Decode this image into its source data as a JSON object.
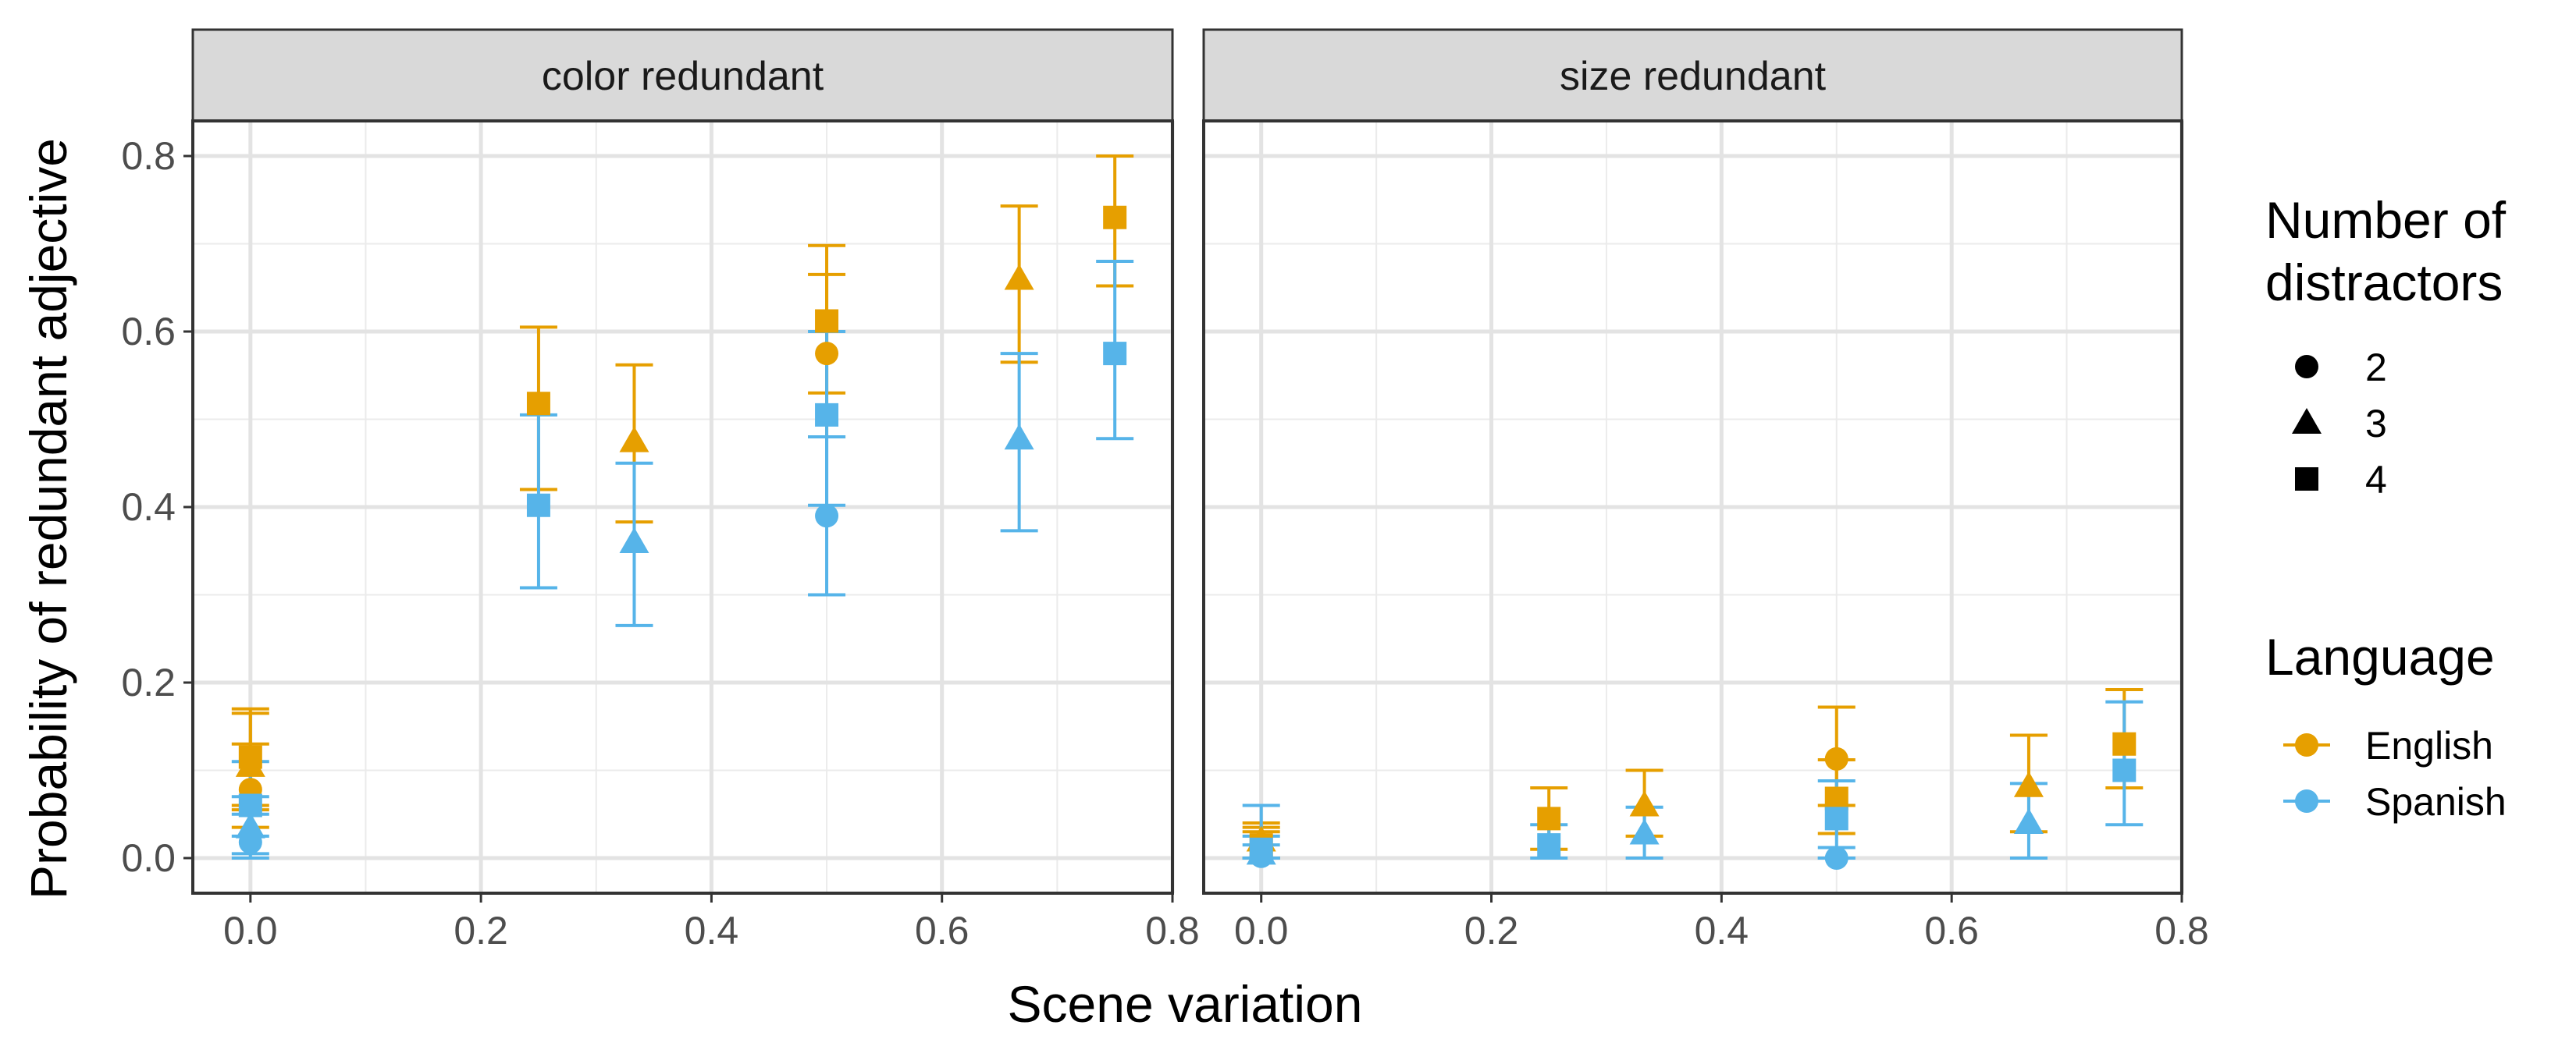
{
  "chart_data": {
    "type": "scatter",
    "xlabel": "Scene variation",
    "ylabel": "Probability of redundant adjective",
    "xlim": [
      -0.05,
      0.8
    ],
    "ylim": [
      -0.04,
      0.84
    ],
    "x_ticks": [
      "0.0",
      "0.2",
      "0.4",
      "0.6",
      "0.8"
    ],
    "y_ticks": [
      "0.0",
      "0.2",
      "0.4",
      "0.6",
      "0.8"
    ],
    "x_tick_values": [
      0,
      0.2,
      0.4,
      0.6,
      0.8
    ],
    "y_tick_values": [
      0,
      0.2,
      0.4,
      0.6,
      0.8
    ],
    "grid": true,
    "legend_position": "right",
    "legend": {
      "shape_title_line1": "Number of",
      "shape_title_line2": "distractors",
      "shapes": [
        {
          "label": "2",
          "shape": "circle"
        },
        {
          "label": "3",
          "shape": "triangle"
        },
        {
          "label": "4",
          "shape": "square"
        }
      ],
      "color_title": "Language",
      "colors": [
        {
          "label": "English",
          "color": "#E69F00"
        },
        {
          "label": "Spanish",
          "color": "#56B4E9"
        }
      ]
    },
    "panels": [
      {
        "label": "color redundant",
        "points": [
          {
            "language": "English",
            "distractors": "2",
            "x": 0.0,
            "y": 0.078,
            "lo": 0.035,
            "hi": 0.13
          },
          {
            "language": "English",
            "distractors": "3",
            "x": 0.0,
            "y": 0.105,
            "lo": 0.055,
            "hi": 0.165
          },
          {
            "language": "English",
            "distractors": "4",
            "x": 0.0,
            "y": 0.115,
            "lo": 0.06,
            "hi": 0.17
          },
          {
            "language": "Spanish",
            "distractors": "2",
            "x": 0.0,
            "y": 0.018,
            "lo": 0.0,
            "hi": 0.05
          },
          {
            "language": "Spanish",
            "distractors": "3",
            "x": 0.0,
            "y": 0.035,
            "lo": 0.005,
            "hi": 0.07
          },
          {
            "language": "Spanish",
            "distractors": "4",
            "x": 0.0,
            "y": 0.06,
            "lo": 0.025,
            "hi": 0.11
          },
          {
            "language": "English",
            "distractors": "4",
            "x": 0.25,
            "y": 0.518,
            "lo": 0.42,
            "hi": 0.605
          },
          {
            "language": "Spanish",
            "distractors": "4",
            "x": 0.25,
            "y": 0.402,
            "lo": 0.308,
            "hi": 0.505
          },
          {
            "language": "English",
            "distractors": "3",
            "x": 0.333,
            "y": 0.475,
            "lo": 0.383,
            "hi": 0.562
          },
          {
            "language": "Spanish",
            "distractors": "3",
            "x": 0.333,
            "y": 0.36,
            "lo": 0.265,
            "hi": 0.45
          },
          {
            "language": "English",
            "distractors": "2",
            "x": 0.5,
            "y": 0.575,
            "lo": 0.48,
            "hi": 0.665
          },
          {
            "language": "English",
            "distractors": "4",
            "x": 0.5,
            "y": 0.612,
            "lo": 0.53,
            "hi": 0.698
          },
          {
            "language": "Spanish",
            "distractors": "2",
            "x": 0.5,
            "y": 0.39,
            "lo": 0.3,
            "hi": 0.48
          },
          {
            "language": "Spanish",
            "distractors": "4",
            "x": 0.5,
            "y": 0.505,
            "lo": 0.402,
            "hi": 0.6
          },
          {
            "language": "English",
            "distractors": "3",
            "x": 0.667,
            "y": 0.66,
            "lo": 0.565,
            "hi": 0.743
          },
          {
            "language": "Spanish",
            "distractors": "3",
            "x": 0.667,
            "y": 0.478,
            "lo": 0.373,
            "hi": 0.575
          },
          {
            "language": "English",
            "distractors": "4",
            "x": 0.75,
            "y": 0.73,
            "lo": 0.652,
            "hi": 0.8
          },
          {
            "language": "Spanish",
            "distractors": "4",
            "x": 0.75,
            "y": 0.575,
            "lo": 0.478,
            "hi": 0.68
          }
        ]
      },
      {
        "label": "size redundant",
        "points": [
          {
            "language": "English",
            "distractors": "2",
            "x": 0.0,
            "y": 0.012,
            "lo": 0.0,
            "hi": 0.04
          },
          {
            "language": "English",
            "distractors": "3",
            "x": 0.0,
            "y": 0.02,
            "lo": 0.0,
            "hi": 0.035
          },
          {
            "language": "English",
            "distractors": "4",
            "x": 0.0,
            "y": 0.015,
            "lo": 0.0,
            "hi": 0.03
          },
          {
            "language": "Spanish",
            "distractors": "2",
            "x": 0.0,
            "y": 0.002,
            "lo": 0.0,
            "hi": 0.015
          },
          {
            "language": "Spanish",
            "distractors": "3",
            "x": 0.0,
            "y": 0.005,
            "lo": 0.0,
            "hi": 0.025
          },
          {
            "language": "Spanish",
            "distractors": "4",
            "x": 0.0,
            "y": 0.01,
            "lo": 0.0,
            "hi": 0.06
          },
          {
            "language": "English",
            "distractors": "4",
            "x": 0.25,
            "y": 0.045,
            "lo": 0.01,
            "hi": 0.08
          },
          {
            "language": "Spanish",
            "distractors": "4",
            "x": 0.25,
            "y": 0.015,
            "lo": 0.0,
            "hi": 0.038
          },
          {
            "language": "English",
            "distractors": "3",
            "x": 0.333,
            "y": 0.06,
            "lo": 0.025,
            "hi": 0.1
          },
          {
            "language": "Spanish",
            "distractors": "3",
            "x": 0.333,
            "y": 0.028,
            "lo": 0.0,
            "hi": 0.058
          },
          {
            "language": "English",
            "distractors": "2",
            "x": 0.5,
            "y": 0.113,
            "lo": 0.06,
            "hi": 0.172
          },
          {
            "language": "English",
            "distractors": "4",
            "x": 0.5,
            "y": 0.068,
            "lo": 0.028,
            "hi": 0.112
          },
          {
            "language": "Spanish",
            "distractors": "2",
            "x": 0.5,
            "y": 0.0,
            "lo": 0.0,
            "hi": 0.0
          },
          {
            "language": "Spanish",
            "distractors": "4",
            "x": 0.5,
            "y": 0.045,
            "lo": 0.012,
            "hi": 0.088
          },
          {
            "language": "English",
            "distractors": "3",
            "x": 0.667,
            "y": 0.082,
            "lo": 0.03,
            "hi": 0.14
          },
          {
            "language": "Spanish",
            "distractors": "3",
            "x": 0.667,
            "y": 0.04,
            "lo": 0.0,
            "hi": 0.085
          },
          {
            "language": "English",
            "distractors": "4",
            "x": 0.75,
            "y": 0.13,
            "lo": 0.08,
            "hi": 0.192
          },
          {
            "language": "Spanish",
            "distractors": "4",
            "x": 0.75,
            "y": 0.1,
            "lo": 0.038,
            "hi": 0.178
          }
        ]
      }
    ]
  }
}
